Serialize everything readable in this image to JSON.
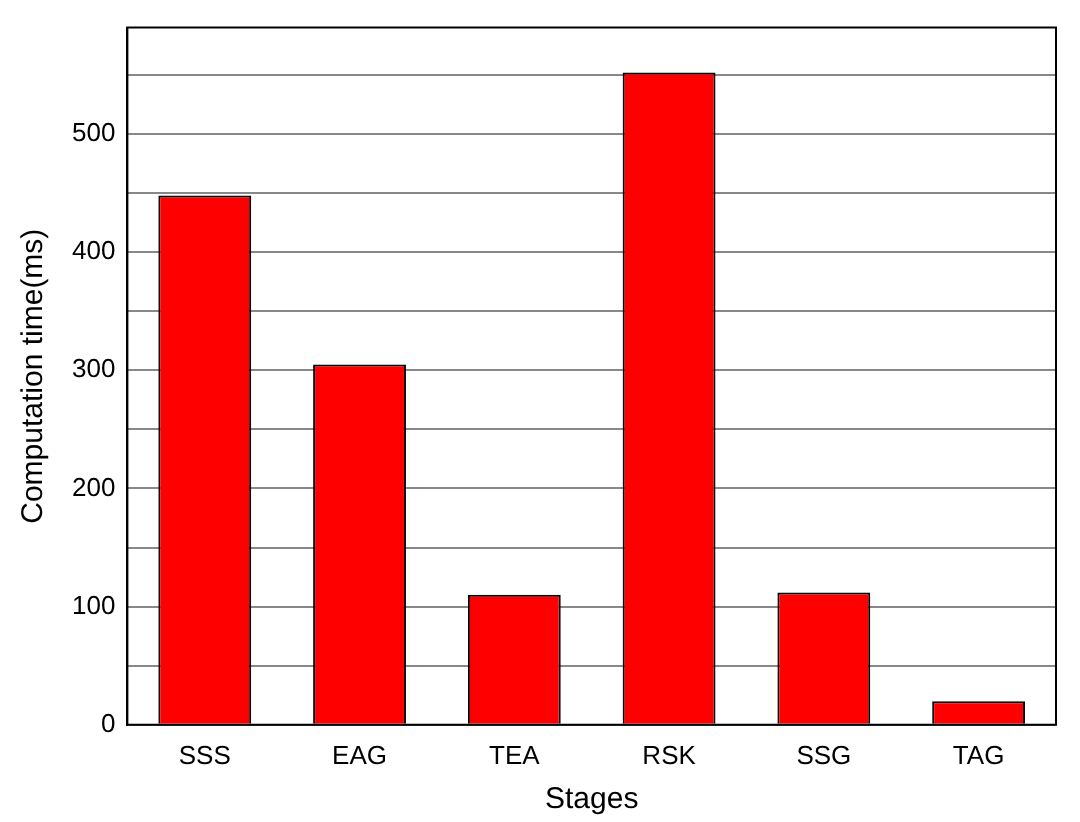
{
  "chart_data": {
    "type": "bar",
    "xlabel": "Stages",
    "ylabel": "Computation time(ms)",
    "categories": [
      "SSS",
      "EAG",
      "TEA",
      "RSK",
      "SSG",
      "TAG"
    ],
    "values": [
      448,
      305,
      110,
      552,
      112,
      20
    ],
    "color": "#ff0000",
    "ylim": [
      0,
      590
    ],
    "yticks": [
      0,
      {
        "value": 50,
        "label": null
      },
      100,
      {
        "value": 150,
        "label": null
      },
      200,
      {
        "value": 250,
        "label": null
      },
      300,
      {
        "value": 350,
        "label": null
      },
      400,
      {
        "value": 450,
        "label": null
      },
      500,
      {
        "value": 550,
        "label": null
      }
    ],
    "grid": "y",
    "legend": false
  }
}
